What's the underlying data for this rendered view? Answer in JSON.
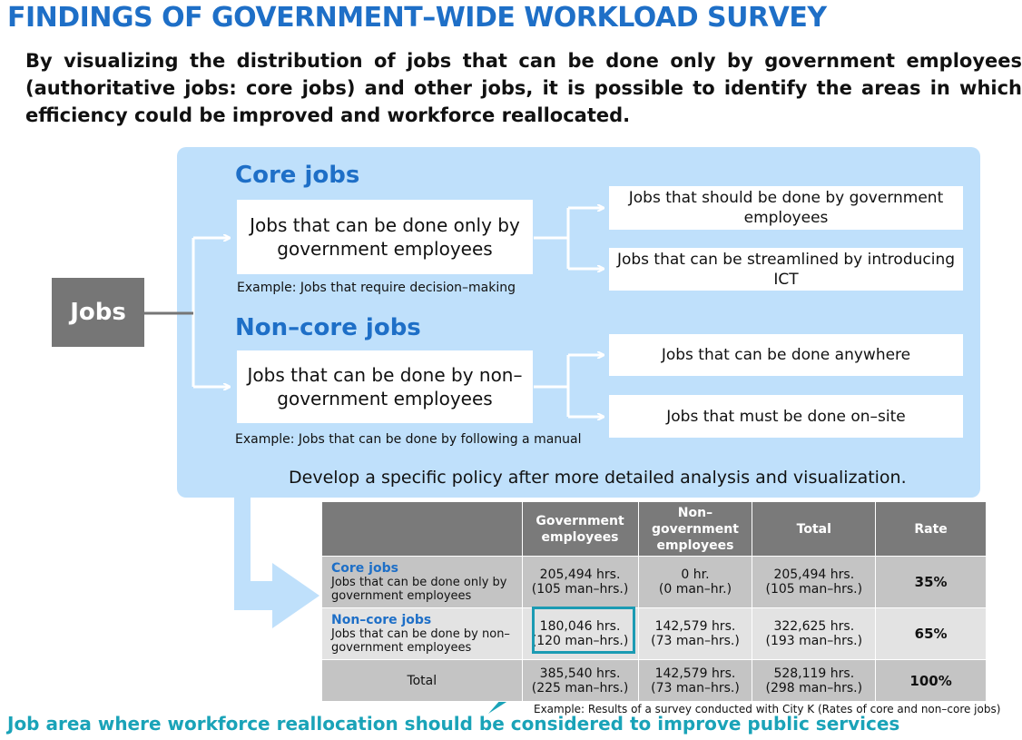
{
  "title": "FINDINGS OF GOVERNMENT–WIDE WORKLOAD SURVEY",
  "intro": "By visualizing the distribution of jobs that can be done only by government employees (authoritative jobs: core jobs) and other jobs, it is possible to identify the areas in which efficiency could be improved and workforce reallocated.",
  "jobs_label": "Jobs",
  "core": {
    "header": "Core jobs",
    "main_box": "Jobs that can be done only by government employees",
    "example": "Example: Jobs that require decision–making",
    "branch_1": "Jobs that should be done by government employees",
    "branch_2": "Jobs that can be streamlined by introducing ICT"
  },
  "noncore": {
    "header": "Non–core jobs",
    "main_box": "Jobs that can be done by non–government employees",
    "example": "Example: Jobs that can be done by following a manual",
    "branch_1": "Jobs that can be done anywhere",
    "branch_2": "Jobs that must be done on–site"
  },
  "develop": "Develop a specific policy after more detailed analysis and visualization.",
  "table": {
    "headers": [
      "",
      "Government employees",
      "Non– government employees",
      "Total",
      "Rate"
    ],
    "rows": [
      {
        "title": "Core jobs",
        "desc": "Jobs that can be done only by government employees",
        "gov": "205,494 hrs.",
        "gov_sub": "(105 man–hrs.)",
        "nongov": "0 hr.",
        "nongov_sub": "(0 man–hr.)",
        "total": "205,494 hrs.",
        "total_sub": "(105 man–hrs.)",
        "rate": "35%"
      },
      {
        "title": "Non–core jobs",
        "desc": "Jobs that can be done by non–government employees",
        "gov": "180,046 hrs.",
        "gov_sub": "(120 man–hrs.)",
        "nongov": "142,579 hrs.",
        "nongov_sub": "(73 man–hrs.)",
        "total": "322,625 hrs.",
        "total_sub": "(193 man–hrs.)",
        "rate": "65%"
      },
      {
        "title": "Total",
        "gov": "385,540 hrs.",
        "gov_sub": "(225 man–hrs.)",
        "nongov": "142,579 hrs.",
        "nongov_sub": "(73 man–hrs.)",
        "total": "528,119 hrs.",
        "total_sub": "(298 man–hrs.)",
        "rate": "100%"
      }
    ]
  },
  "note": "Example: Results of a survey conducted with City K (Rates of core and non–core jobs)",
  "bottom_caption": "Job area where workforce reallocation should be considered to improve public services",
  "colors": {
    "title_blue": "#1e6fc7",
    "panel_blue": "#bfe0fb",
    "teal": "#1aa3b8",
    "gray": "#767676"
  }
}
